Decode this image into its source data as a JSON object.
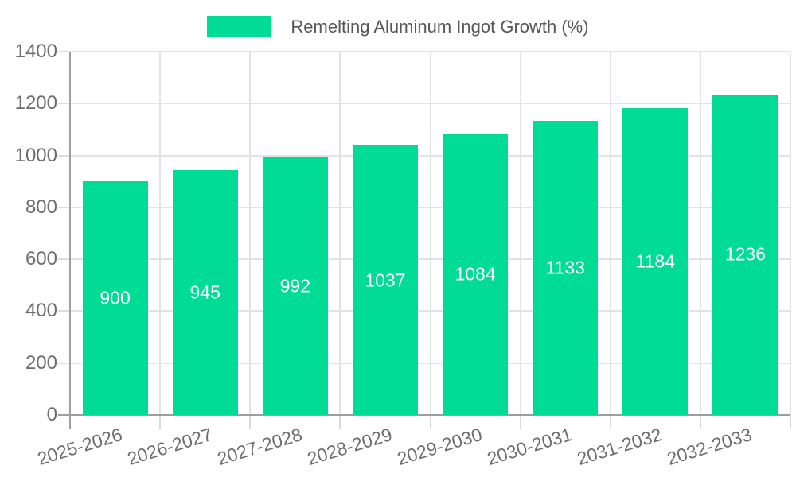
{
  "legend": {
    "label": "Remelting Aluminum Ingot Growth (%)"
  },
  "chart_data": {
    "type": "bar",
    "title": "Remelting Aluminum Ingot Growth (%)",
    "categories": [
      "2025-2026",
      "2026-2027",
      "2027-2028",
      "2028-2029",
      "2029-2030",
      "2030-2031",
      "2031-2032",
      "2032-2033"
    ],
    "values": [
      900,
      945,
      992,
      1037,
      1084,
      1133,
      1184,
      1236
    ],
    "yticks": [
      0,
      200,
      400,
      600,
      800,
      1000,
      1200,
      1400
    ],
    "ylim": [
      0,
      1400
    ],
    "xlabel": "",
    "ylabel": "",
    "grid": true,
    "legend_position": "top",
    "bar_color": "#00db95",
    "value_label_color": "#ffffff"
  },
  "colors": {
    "background": "#ffffff",
    "axis_line": "#9e9e9e",
    "grid_line": "#e3e3e3",
    "axis_text": "#6e6e6e",
    "legend_text": "#565656"
  }
}
